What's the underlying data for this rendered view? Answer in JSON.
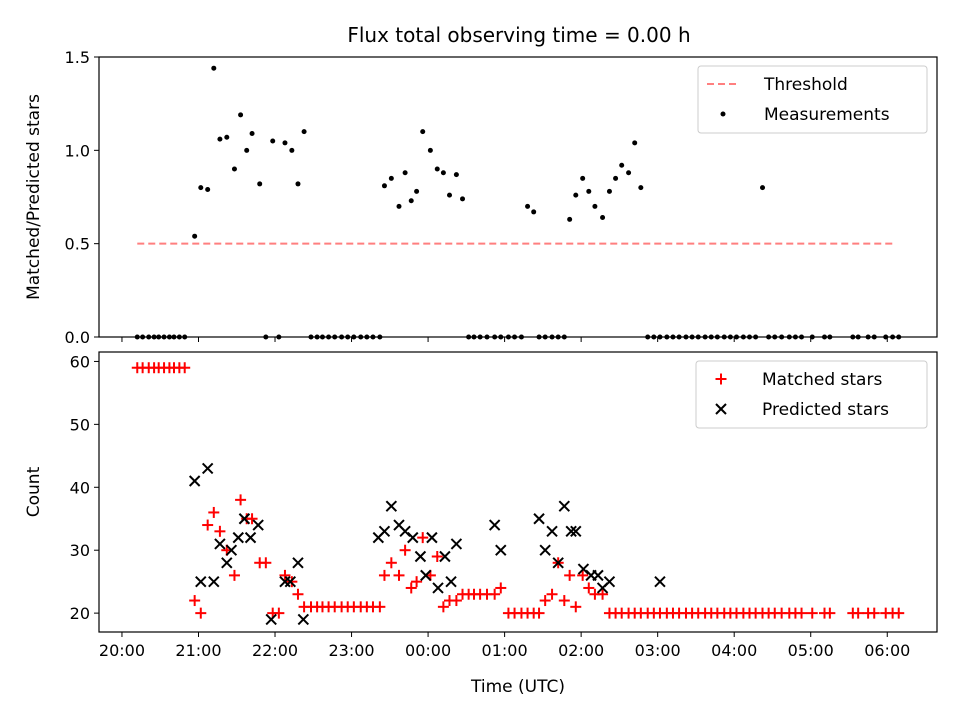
{
  "title": "Flux total observing time = 0.00 h",
  "chart_data": [
    {
      "type": "scatter",
      "name": "ratio-panel",
      "ylabel": "Matched/Predicted stars",
      "ylim": [
        0,
        1.5
      ],
      "yticks": [
        0.0,
        0.5,
        1.0,
        1.5
      ],
      "ytick_labels": [
        "0.0",
        "0.5",
        "1.0",
        "1.5"
      ],
      "xlim": [
        19.7,
        30.65
      ],
      "xticks": [
        20,
        21,
        22,
        23,
        24,
        25,
        26,
        27,
        28,
        29,
        30
      ],
      "legend_position": "upper-right",
      "threshold": {
        "name": "Threshold",
        "value": 0.5,
        "x": [
          20.2,
          30.1
        ],
        "color": "#ff7f7f"
      },
      "series": [
        {
          "name": "Measurements",
          "color": "#000000",
          "x": [
            20.2,
            20.27,
            20.35,
            20.42,
            20.48,
            20.55,
            20.62,
            20.68,
            20.75,
            20.82,
            20.95,
            21.03,
            21.12,
            21.2,
            21.28,
            21.37,
            21.47,
            21.55,
            21.63,
            21.7,
            21.8,
            21.88,
            21.97,
            22.05,
            22.13,
            22.22,
            22.3,
            22.38,
            22.47,
            22.55,
            22.62,
            22.7,
            22.78,
            22.87,
            22.95,
            23.03,
            23.12,
            23.2,
            23.28,
            23.37,
            23.43,
            23.52,
            23.62,
            23.7,
            23.78,
            23.85,
            23.93,
            24.03,
            24.12,
            24.2,
            24.28,
            24.37,
            24.45,
            24.53,
            24.6,
            24.68,
            24.77,
            24.87,
            24.95,
            25.05,
            25.13,
            25.22,
            25.3,
            25.38,
            25.45,
            25.53,
            25.62,
            25.7,
            25.78,
            25.85,
            25.93,
            26.02,
            26.1,
            26.18,
            26.28,
            26.37,
            26.45,
            26.53,
            26.62,
            26.7,
            26.78,
            26.87,
            26.95,
            27.03,
            27.12,
            27.2,
            27.28,
            27.37,
            27.45,
            27.53,
            27.62,
            27.7,
            27.78,
            27.87,
            27.95,
            28.03,
            28.12,
            28.2,
            28.28,
            28.37,
            28.45,
            28.53,
            28.62,
            28.72,
            28.8,
            28.88,
            29.02,
            29.18,
            29.25,
            29.55,
            29.62,
            29.75,
            29.83,
            29.98,
            30.07,
            30.15
          ],
          "y": [
            0,
            0,
            0,
            0,
            0,
            0,
            0,
            0,
            0,
            0,
            0.54,
            0.8,
            0.79,
            1.44,
            1.06,
            1.07,
            0.9,
            1.19,
            1.0,
            1.09,
            0.82,
            0,
            1.05,
            0,
            1.04,
            1.0,
            0.82,
            1.1,
            0,
            0,
            0,
            0,
            0,
            0,
            0,
            0,
            0,
            0,
            0,
            0,
            0.81,
            0.85,
            0.7,
            0.88,
            0.73,
            0.78,
            1.1,
            1.0,
            0.9,
            0.88,
            0.76,
            0.87,
            0.74,
            0,
            0,
            0,
            0,
            0,
            0,
            0,
            0,
            0,
            0.7,
            0.67,
            0,
            0,
            0,
            0,
            0,
            0.63,
            0.76,
            0.85,
            0.78,
            0.7,
            0.64,
            0.78,
            0.85,
            0.92,
            0.88,
            1.04,
            0.8,
            0,
            0,
            0,
            0,
            0,
            0,
            0,
            0,
            0,
            0,
            0,
            0,
            0,
            0,
            0,
            0,
            0,
            0,
            0.8,
            0,
            0,
            0,
            0,
            0,
            0,
            0,
            0,
            0,
            0,
            0,
            0,
            0,
            0,
            0,
            0
          ]
        }
      ]
    },
    {
      "type": "scatter",
      "name": "count-panel",
      "xlabel": "Time (UTC)",
      "ylabel": "Count",
      "ylim": [
        17,
        61.5
      ],
      "yticks": [
        20,
        30,
        40,
        50,
        60
      ],
      "ytick_labels": [
        "20",
        "30",
        "40",
        "50",
        "60"
      ],
      "xlim": [
        19.7,
        30.65
      ],
      "xticks": [
        20,
        21,
        22,
        23,
        24,
        25,
        26,
        27,
        28,
        29,
        30
      ],
      "xtick_labels": [
        "20:00",
        "21:00",
        "22:00",
        "23:00",
        "00:00",
        "01:00",
        "02:00",
        "03:00",
        "04:00",
        "05:00",
        "06:00"
      ],
      "legend_position": "upper-right",
      "series": [
        {
          "name": "Matched stars",
          "marker": "plus",
          "color": "#ff0000",
          "x": [
            20.2,
            20.27,
            20.35,
            20.42,
            20.48,
            20.55,
            20.62,
            20.68,
            20.75,
            20.82,
            20.95,
            21.03,
            21.12,
            21.2,
            21.28,
            21.37,
            21.47,
            21.55,
            21.63,
            21.7,
            21.8,
            21.88,
            21.97,
            22.05,
            22.13,
            22.22,
            22.3,
            22.38,
            22.47,
            22.55,
            22.62,
            22.7,
            22.78,
            22.87,
            22.95,
            23.03,
            23.12,
            23.2,
            23.28,
            23.37,
            23.43,
            23.52,
            23.62,
            23.7,
            23.78,
            23.85,
            23.93,
            24.03,
            24.12,
            24.2,
            24.28,
            24.37,
            24.45,
            24.53,
            24.6,
            24.68,
            24.77,
            24.87,
            24.95,
            25.05,
            25.13,
            25.22,
            25.3,
            25.38,
            25.45,
            25.53,
            25.62,
            25.7,
            25.78,
            25.85,
            25.93,
            26.02,
            26.1,
            26.18,
            26.28,
            26.37,
            26.45,
            26.53,
            26.62,
            26.7,
            26.78,
            26.87,
            26.95,
            27.03,
            27.12,
            27.2,
            27.28,
            27.37,
            27.45,
            27.53,
            27.62,
            27.7,
            27.78,
            27.87,
            27.95,
            28.03,
            28.12,
            28.2,
            28.28,
            28.37,
            28.45,
            28.53,
            28.62,
            28.72,
            28.8,
            28.88,
            29.02,
            29.18,
            29.25,
            29.55,
            29.62,
            29.75,
            29.83,
            29.98,
            30.07,
            30.15
          ],
          "y": [
            59,
            59,
            59,
            59,
            59,
            59,
            59,
            59,
            59,
            59,
            22,
            20,
            34,
            36,
            33,
            30,
            26,
            38,
            35,
            35,
            28,
            28,
            20,
            20,
            26,
            25,
            23,
            21,
            21,
            21,
            21,
            21,
            21,
            21,
            21,
            21,
            21,
            21,
            21,
            21,
            26,
            28,
            26,
            30,
            24,
            25,
            32,
            26,
            29,
            21,
            22,
            22,
            23,
            23,
            23,
            23,
            23,
            23,
            24,
            20,
            20,
            20,
            20,
            20,
            20,
            22,
            23,
            28,
            22,
            26,
            21,
            26,
            24,
            23,
            23,
            20,
            20,
            20,
            20,
            20,
            20,
            20,
            20,
            20,
            20,
            20,
            20,
            20,
            20,
            20,
            20,
            20,
            20,
            20,
            20,
            20,
            20,
            20,
            20,
            20,
            20,
            20,
            20,
            20,
            20,
            20,
            20,
            20,
            20,
            20,
            20,
            20,
            20,
            20,
            20,
            20
          ]
        },
        {
          "name": "Predicted stars",
          "marker": "x",
          "color": "#000000",
          "x": [
            20.95,
            21.03,
            21.12,
            21.2,
            21.28,
            21.37,
            21.43,
            21.52,
            21.6,
            21.68,
            21.78,
            21.95,
            22.13,
            22.2,
            22.3,
            22.37,
            23.35,
            23.43,
            23.52,
            23.62,
            23.7,
            23.8,
            23.9,
            23.97,
            24.05,
            24.13,
            24.22,
            24.3,
            24.37,
            24.87,
            24.95,
            25.45,
            25.53,
            25.62,
            25.7,
            25.78,
            25.87,
            25.93,
            26.03,
            26.13,
            26.22,
            26.28,
            26.37,
            27.03
          ],
          "y": [
            41,
            25,
            43,
            25,
            31,
            28,
            30,
            32,
            35,
            32,
            34,
            19,
            25,
            25,
            28,
            19,
            32,
            33,
            37,
            34,
            33,
            32,
            29,
            26,
            32,
            24,
            29,
            25,
            31,
            34,
            30,
            35,
            30,
            33,
            28,
            37,
            33,
            33,
            27,
            26,
            26,
            24,
            25,
            25
          ]
        }
      ]
    }
  ]
}
